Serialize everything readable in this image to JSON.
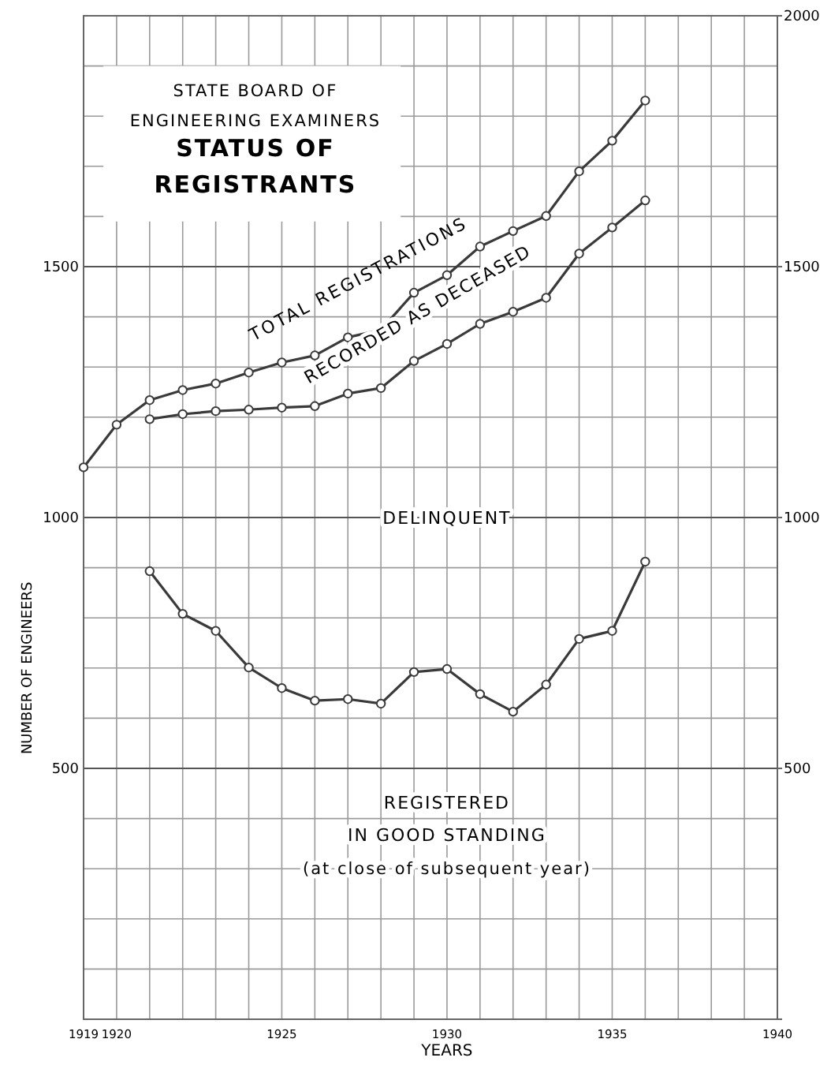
{
  "chart_data": {
    "type": "line",
    "title": "STATUS OF REGISTRANTS",
    "subtitle": "STATE BOARD OF ENGINEERING EXAMINERS",
    "xlabel": "YEARS",
    "ylabel": "NUMBER OF ENGINEERS",
    "x": [
      1919,
      1920,
      1921,
      1922,
      1923,
      1924,
      1925,
      1926,
      1927,
      1928,
      1929,
      1930,
      1931,
      1932,
      1933,
      1934,
      1935,
      1936
    ],
    "series": [
      {
        "name": "TOTAL REGISTRATIONS",
        "color": "#3a3a3a",
        "values": [
          1100,
          1185,
          1234,
          1254,
          1267,
          1289,
          1309,
          1323,
          1359,
          1374,
          1448,
          1483,
          1540,
          1571,
          1601,
          1690,
          1751,
          1831
        ]
      },
      {
        "color": "#3a3a3a",
        "values": [
          null,
          null,
          1196,
          1206,
          1212,
          1215,
          1219,
          1222,
          1247,
          1258,
          1312,
          1346,
          1386,
          1410,
          1438,
          1526,
          1578,
          1632
        ]
      },
      {
        "color": "#3a3a3a",
        "values": [
          null,
          null,
          893,
          808,
          774,
          701,
          660,
          635,
          638,
          629,
          692,
          698,
          648,
          613,
          667,
          758,
          774,
          912
        ]
      }
    ],
    "annotations": [
      "RECORDED AS DECEASED",
      "DELINQUENT",
      "REGISTERED",
      "IN GOOD STANDING",
      "(at close of subsequent year)"
    ],
    "xlim": [
      1919,
      1940
    ],
    "xticks": [
      1919,
      1920,
      {
        "value": 1921,
        "label": null
      },
      {
        "value": 1922,
        "label": null
      },
      {
        "value": 1923,
        "label": null
      },
      {
        "value": 1924,
        "label": null
      },
      1925,
      {
        "value": 1926,
        "label": null
      },
      {
        "value": 1927,
        "label": null
      },
      {
        "value": 1928,
        "label": null
      },
      {
        "value": 1929,
        "label": null
      },
      1930,
      {
        "value": 1931,
        "label": null
      },
      {
        "value": 1932,
        "label": null
      },
      {
        "value": 1933,
        "label": null
      },
      {
        "value": 1934,
        "label": null
      },
      1935,
      {
        "value": 1936,
        "label": null
      },
      {
        "value": 1937,
        "label": null
      },
      {
        "value": 1938,
        "label": null
      },
      {
        "value": 1939,
        "label": null
      },
      1940
    ],
    "ylim": [
      0,
      2000
    ],
    "yticks": [
      {
        "value": 0,
        "label": null
      },
      {
        "value": 100,
        "label": null
      },
      {
        "value": 200,
        "label": null
      },
      {
        "value": 300,
        "label": null
      },
      {
        "value": 400,
        "label": null
      },
      500,
      {
        "value": 600,
        "label": null
      },
      {
        "value": 700,
        "label": null
      },
      {
        "value": 800,
        "label": null
      },
      {
        "value": 900,
        "label": null
      },
      1000,
      {
        "value": 1100,
        "label": null
      },
      {
        "value": 1200,
        "label": null
      },
      {
        "value": 1300,
        "label": null
      },
      {
        "value": 1400,
        "label": null
      },
      1500,
      {
        "value": 1600,
        "label": null
      },
      {
        "value": 1700,
        "label": null
      },
      {
        "value": 1800,
        "label": null
      },
      {
        "value": 1900,
        "label": null
      },
      {
        "value": 2000,
        "label": null
      }
    ],
    "y2lim": [
      0,
      2000
    ],
    "y2ticks": [
      {
        "value": 0,
        "label": null
      },
      500,
      1000,
      1500,
      2000
    ],
    "grid": true,
    "marker": "circle",
    "line_style": "solid"
  }
}
